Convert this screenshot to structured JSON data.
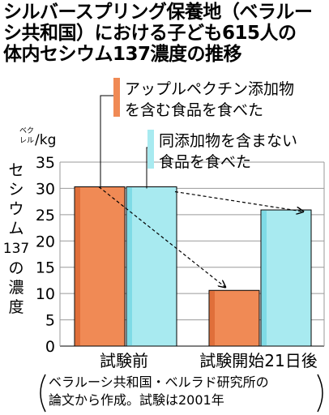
{
  "title_lines": [
    "シルバースプリング保養地（ベラルー",
    "シ共和国）における子ども615人の",
    "体内セシウム137濃度の推移"
  ],
  "source_note_lines": [
    "ベラルーシ共和国・ベルラド研究所の",
    "論文から作成。試験は2001年"
  ],
  "colors": {
    "orange": "#f08a55",
    "orange_shade": "#e06f3a",
    "cyan": "#a8eaf0",
    "cyan_shade": "#7fdbe6",
    "grid": "#9a9a9a",
    "text": "#000000"
  },
  "chart_data": {
    "type": "bar",
    "unit": "ベクレル/kg",
    "ylabel": "セシウム137の濃度",
    "ylim": [
      0,
      35
    ],
    "yticks": [
      0,
      5,
      10,
      15,
      20,
      25,
      30,
      35
    ],
    "grid": true,
    "categories": [
      "試験前",
      "試験開始21日後"
    ],
    "series": [
      {
        "name": "アップルペクチン添加物を含む食品を食べた",
        "name_lines": [
          "アップルペクチン添加物",
          "を含む食品を食べた"
        ],
        "values": [
          30.3,
          10.6
        ]
      },
      {
        "name": "同添加物を含まない食品を食べた",
        "name_lines": [
          "同添加物を含まない",
          "食品を食べた"
        ],
        "values": [
          30.3,
          25.9
        ]
      }
    ]
  }
}
